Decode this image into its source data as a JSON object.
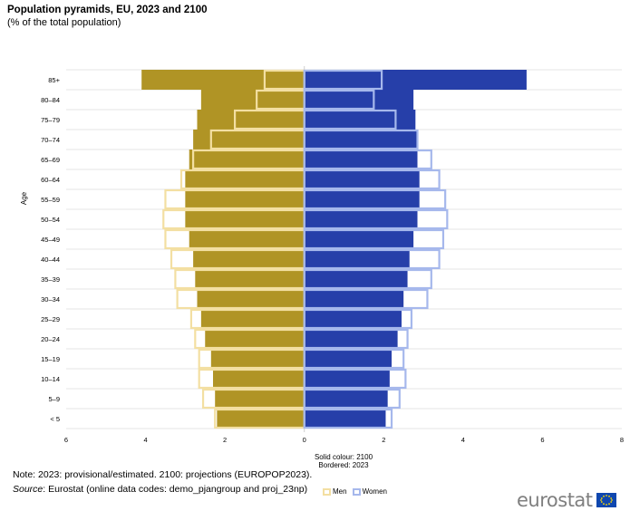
{
  "header": {
    "title": "Population pyramids, EU, 2023 and 2100",
    "subtitle": "(% of the total population)"
  },
  "chart_data": {
    "type": "bar",
    "orientation": "horizontal-pyramid",
    "ylabel": "Age",
    "xlim": [
      -6,
      8
    ],
    "x_ticks": [
      "6",
      "4",
      "2",
      "0",
      "2",
      "4",
      "6",
      "8"
    ],
    "grid": true,
    "categories": [
      "85+",
      "80–84",
      "75–79",
      "70–74",
      "65–69",
      "60–64",
      "55–59",
      "50–54",
      "45–49",
      "40–44",
      "35–39",
      "30–34",
      "25–29",
      "20–24",
      "15–19",
      "10–14",
      "5–9",
      "< 5"
    ],
    "series": [
      {
        "name": "Men",
        "year": "2100",
        "style": "solid",
        "color": "#b09425",
        "values": [
          4.1,
          2.6,
          2.7,
          2.8,
          2.9,
          3.0,
          3.0,
          3.0,
          2.9,
          2.8,
          2.75,
          2.7,
          2.6,
          2.5,
          2.35,
          2.3,
          2.25,
          2.2
        ]
      },
      {
        "name": "Men",
        "year": "2023",
        "style": "bordered",
        "color": "#f3dfa2",
        "values": [
          1.0,
          1.2,
          1.75,
          2.35,
          2.8,
          3.1,
          3.5,
          3.55,
          3.5,
          3.35,
          3.25,
          3.2,
          2.85,
          2.75,
          2.65,
          2.65,
          2.55,
          2.25
        ]
      },
      {
        "name": "Women",
        "year": "2100",
        "style": "solid",
        "color": "#263fa9",
        "values": [
          5.6,
          2.75,
          2.8,
          2.85,
          2.85,
          2.9,
          2.9,
          2.85,
          2.75,
          2.65,
          2.6,
          2.5,
          2.45,
          2.35,
          2.2,
          2.15,
          2.1,
          2.05
        ]
      },
      {
        "name": "Women",
        "year": "2023",
        "style": "bordered",
        "color": "#a6b8ec",
        "values": [
          1.95,
          1.75,
          2.3,
          2.85,
          3.2,
          3.4,
          3.55,
          3.6,
          3.5,
          3.4,
          3.2,
          3.1,
          2.7,
          2.6,
          2.5,
          2.55,
          2.4,
          2.2
        ]
      }
    ],
    "legend": {
      "placement": "bottom",
      "items": [
        "Men",
        "Women"
      ]
    }
  },
  "caption": {
    "line1": "Solid colour: 2100",
    "line2": "Bordered: 2023"
  },
  "footer": {
    "note": "Note: 2023: provisional/estimated.  2100: projections (EUROPOP2023).",
    "source_label": "Source",
    "source_text": ": Eurostat (online data codes: demo_pjangroup and proj_23np)"
  },
  "logo": {
    "text": "eurostat",
    "flag_icon": "eu-flag-icon"
  }
}
